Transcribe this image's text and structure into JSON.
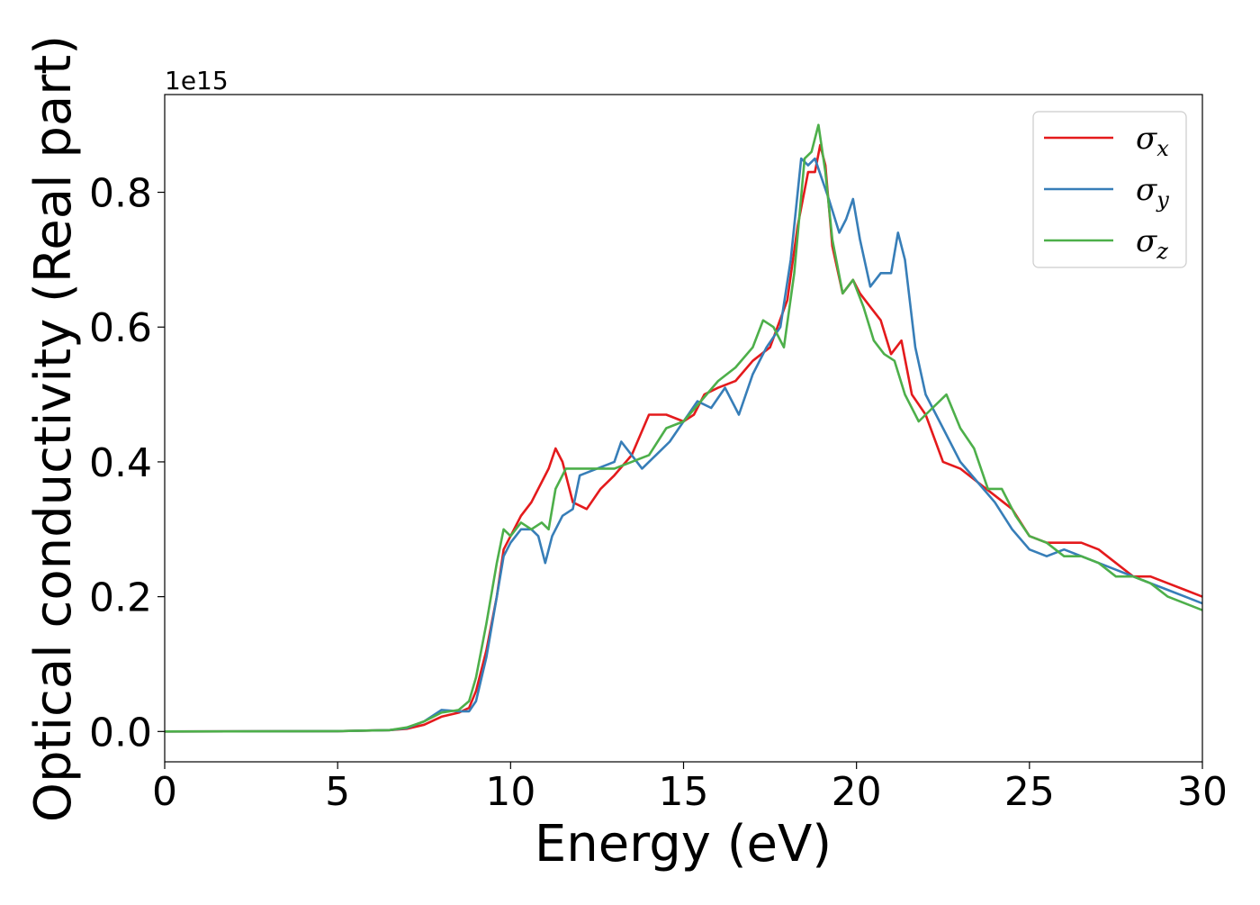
{
  "chart_data": {
    "type": "line",
    "title": "",
    "xlabel": "Energy (eV)",
    "ylabel": "Optical conductivity (Real part)",
    "y_offset_text": "1e15",
    "xlim": [
      0,
      30
    ],
    "ylim": [
      -0.045,
      0.945
    ],
    "x_ticks": [
      0,
      5,
      10,
      15,
      20,
      25,
      30
    ],
    "x_tick_labels": [
      "0",
      "5",
      "10",
      "15",
      "20",
      "25",
      "30"
    ],
    "y_ticks": [
      0.0,
      0.2,
      0.4,
      0.6,
      0.8
    ],
    "y_tick_labels": [
      "0.0",
      "0.2",
      "0.4",
      "0.6",
      "0.8"
    ],
    "grid": false,
    "legend_position": "top-right",
    "series": [
      {
        "name": "σx",
        "legend_base": "σ",
        "legend_sub": "x",
        "color": "#e41a1c",
        "x": [
          0,
          5,
          6.5,
          7.0,
          7.5,
          8.0,
          8.5,
          8.8,
          9.0,
          9.3,
          9.6,
          9.8,
          10.0,
          10.3,
          10.6,
          10.9,
          11.1,
          11.3,
          11.5,
          11.8,
          12.2,
          12.6,
          13.0,
          13.5,
          14.0,
          14.5,
          15.0,
          15.3,
          15.6,
          16.0,
          16.5,
          17.0,
          17.5,
          18.0,
          18.3,
          18.6,
          18.8,
          18.95,
          19.1,
          19.3,
          19.6,
          19.9,
          20.1,
          20.4,
          20.7,
          21.0,
          21.3,
          21.6,
          22.0,
          22.5,
          23.0,
          23.5,
          24.0,
          24.5,
          25.0,
          25.5,
          26.0,
          26.5,
          27.0,
          27.5,
          28.0,
          28.5,
          29.0,
          29.5,
          30.0
        ],
        "values": [
          0.0,
          0.0005,
          0.002,
          0.004,
          0.01,
          0.022,
          0.028,
          0.035,
          0.06,
          0.12,
          0.2,
          0.27,
          0.29,
          0.32,
          0.34,
          0.37,
          0.39,
          0.42,
          0.4,
          0.34,
          0.33,
          0.36,
          0.38,
          0.41,
          0.47,
          0.47,
          0.46,
          0.47,
          0.5,
          0.51,
          0.52,
          0.55,
          0.57,
          0.64,
          0.75,
          0.83,
          0.83,
          0.87,
          0.84,
          0.72,
          0.65,
          0.67,
          0.65,
          0.63,
          0.61,
          0.56,
          0.58,
          0.5,
          0.47,
          0.4,
          0.39,
          0.37,
          0.35,
          0.33,
          0.29,
          0.28,
          0.28,
          0.28,
          0.27,
          0.25,
          0.23,
          0.23,
          0.22,
          0.21,
          0.2
        ]
      },
      {
        "name": "σy",
        "legend_base": "σ",
        "legend_sub": "y",
        "color": "#377eb8",
        "x": [
          0,
          5,
          6.5,
          7.0,
          7.5,
          8.0,
          8.5,
          8.8,
          9.0,
          9.3,
          9.6,
          9.8,
          10.0,
          10.3,
          10.6,
          10.8,
          11.0,
          11.2,
          11.5,
          11.8,
          12.0,
          12.5,
          13.0,
          13.2,
          13.5,
          13.8,
          14.2,
          14.6,
          15.0,
          15.4,
          15.8,
          16.2,
          16.6,
          17.0,
          17.4,
          17.8,
          18.1,
          18.4,
          18.6,
          18.8,
          19.0,
          19.2,
          19.5,
          19.7,
          19.9,
          20.1,
          20.4,
          20.7,
          21.0,
          21.2,
          21.4,
          21.7,
          22.0,
          22.5,
          23.0,
          23.5,
          24.0,
          24.5,
          25.0,
          25.5,
          26.0,
          26.5,
          27.0,
          27.5,
          28.0,
          28.5,
          29.0,
          29.5,
          30.0
        ],
        "values": [
          0.0,
          0.0005,
          0.002,
          0.005,
          0.015,
          0.032,
          0.03,
          0.03,
          0.045,
          0.11,
          0.2,
          0.26,
          0.28,
          0.3,
          0.3,
          0.29,
          0.25,
          0.29,
          0.32,
          0.33,
          0.38,
          0.39,
          0.4,
          0.43,
          0.41,
          0.39,
          0.41,
          0.43,
          0.46,
          0.49,
          0.48,
          0.51,
          0.47,
          0.53,
          0.57,
          0.6,
          0.7,
          0.85,
          0.84,
          0.85,
          0.82,
          0.79,
          0.74,
          0.76,
          0.79,
          0.73,
          0.66,
          0.68,
          0.68,
          0.74,
          0.7,
          0.57,
          0.5,
          0.45,
          0.4,
          0.37,
          0.34,
          0.3,
          0.27,
          0.26,
          0.27,
          0.26,
          0.25,
          0.24,
          0.23,
          0.22,
          0.21,
          0.2,
          0.19
        ]
      },
      {
        "name": "σz",
        "legend_base": "σ",
        "legend_sub": "z",
        "color": "#4daf4a",
        "x": [
          0,
          5,
          6.5,
          7.0,
          7.5,
          8.0,
          8.5,
          8.8,
          9.0,
          9.3,
          9.6,
          9.8,
          10.0,
          10.3,
          10.6,
          10.9,
          11.1,
          11.3,
          11.6,
          12.0,
          12.5,
          13.0,
          13.5,
          14.0,
          14.5,
          15.0,
          15.5,
          16.0,
          16.5,
          17.0,
          17.3,
          17.6,
          17.9,
          18.2,
          18.5,
          18.7,
          18.9,
          19.1,
          19.3,
          19.6,
          19.9,
          20.2,
          20.5,
          20.8,
          21.1,
          21.4,
          21.8,
          22.2,
          22.6,
          23.0,
          23.4,
          23.8,
          24.2,
          24.6,
          25.0,
          25.5,
          26.0,
          26.5,
          27.0,
          27.5,
          28.0,
          28.5,
          29.0,
          29.5,
          30.0
        ],
        "values": [
          0.0,
          0.0005,
          0.002,
          0.006,
          0.015,
          0.028,
          0.032,
          0.045,
          0.08,
          0.16,
          0.25,
          0.3,
          0.29,
          0.31,
          0.3,
          0.31,
          0.3,
          0.36,
          0.39,
          0.39,
          0.39,
          0.39,
          0.4,
          0.41,
          0.45,
          0.46,
          0.49,
          0.52,
          0.54,
          0.57,
          0.61,
          0.6,
          0.57,
          0.68,
          0.85,
          0.86,
          0.9,
          0.83,
          0.73,
          0.65,
          0.67,
          0.63,
          0.58,
          0.56,
          0.55,
          0.5,
          0.46,
          0.48,
          0.5,
          0.45,
          0.42,
          0.36,
          0.36,
          0.32,
          0.29,
          0.28,
          0.26,
          0.26,
          0.25,
          0.23,
          0.23,
          0.22,
          0.2,
          0.19,
          0.18
        ]
      }
    ]
  }
}
